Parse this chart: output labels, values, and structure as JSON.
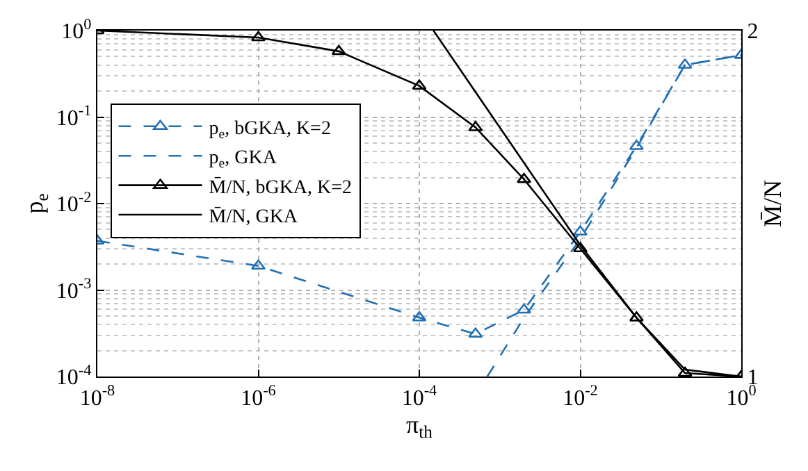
{
  "chart_data": {
    "type": "line",
    "xlabel": "π$_{th}$",
    "ylabel": "p$_{e}$",
    "y2label": "M̄/N",
    "log": "xy",
    "grid": true,
    "legend": "top left",
    "xlim": [
      1e-08,
      1
    ],
    "xticks": [
      {
        "value": 1e-08,
        "label": "10$^{-8}$"
      },
      {
        "value": 1e-06,
        "label": "10$^{-6}$"
      },
      {
        "value": 0.0001,
        "label": "10$^{-4}$"
      },
      {
        "value": 0.01,
        "label": "10$^{-2}$"
      },
      {
        "value": 1,
        "label": "10$^{0}$"
      }
    ],
    "ylim": [
      0.0001,
      1
    ],
    "yticks": [
      {
        "value": 0.0001,
        "label": "10$^{-4}$"
      },
      {
        "value": 0.001,
        "label": "10$^{-3}$"
      },
      {
        "value": 0.01,
        "label": "10$^{-2}$"
      },
      {
        "value": 0.1,
        "label": "10$^{-1}$"
      },
      {
        "value": 1,
        "label": "10$^{0}$"
      }
    ],
    "y2lim": [
      1,
      2
    ],
    "y2ticks": [
      {
        "value": 1,
        "label": "1"
      },
      {
        "value": 2,
        "label": "2"
      }
    ],
    "series": [
      {
        "name": "p$_{e}$, bGKA, K=2",
        "color": "#1f6fb5",
        "marker": "triangle",
        "line_style": "dashed",
        "x": [
          1e-08,
          1e-06,
          0.0001,
          0.0005,
          0.002,
          0.01,
          0.05,
          0.2,
          1
        ],
        "values": [
          0.0037,
          0.0019,
          0.00048,
          0.00031,
          0.00059,
          0.0047,
          0.046,
          0.4,
          0.52
        ]
      },
      {
        "name": "p$_{e}$, GKA",
        "color": "#1f6fb5",
        "marker": "none",
        "line_style": "dashed",
        "x": [
          0.0007,
          0.002,
          0.01,
          0.05,
          0.2,
          1
        ],
        "values": [
          0.0001,
          0.00048,
          0.0039,
          0.044,
          0.4,
          0.52
        ]
      },
      {
        "name": "M̄/N, bGKA, K=2",
        "color": "#000000",
        "marker": "triangle",
        "line_style": "solid",
        "axis": "y2",
        "x": [
          1e-08,
          1e-06,
          1e-05,
          0.0001,
          0.0005,
          0.002,
          0.01,
          0.05,
          0.2,
          1
        ],
        "values": [
          2.0,
          1.98,
          1.94,
          1.84,
          1.72,
          1.57,
          1.37,
          1.17,
          1.01,
          1.0
        ]
      },
      {
        "name": "M̄/N, GKA",
        "color": "#000000",
        "marker": "none",
        "line_style": "solid",
        "axis": "y2",
        "x": [
          0.00015,
          0.01,
          0.05,
          0.2,
          1
        ],
        "values": [
          2.0,
          1.38,
          1.17,
          1.02,
          1.0
        ]
      }
    ]
  }
}
